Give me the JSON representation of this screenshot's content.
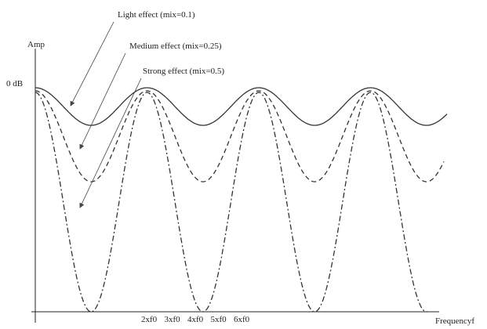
{
  "annotations": [
    "Light effect (mix=0.1)",
    "Medium effect (mix=0.25)",
    "Strong effect (mix=0.5)"
  ],
  "y_axis_label": "Amp",
  "y_tick_label": "0 dB",
  "x_tick_labels": [
    "2xf0",
    "3xf0",
    "4xf0",
    "5xf0",
    "6xf0"
  ],
  "x_axis_label": "Frequencyf"
}
